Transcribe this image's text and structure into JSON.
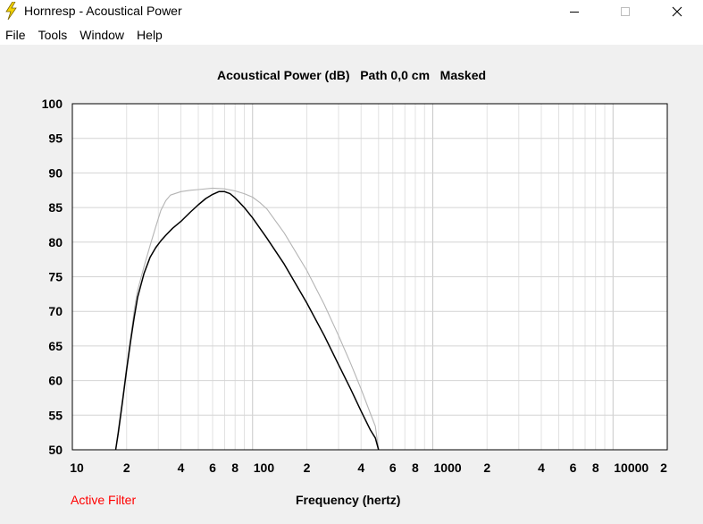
{
  "window": {
    "title": "Hornresp - Acoustical Power",
    "icon": "lightning-bolt-icon",
    "controls": [
      "minimize-icon",
      "maximize-icon",
      "close-icon"
    ]
  },
  "menu": {
    "items": [
      "File",
      "Tools",
      "Window",
      "Help"
    ]
  },
  "status": {
    "filter": "Active Filter",
    "filter_color": "#ff0000"
  },
  "chart_data": {
    "type": "line",
    "title": "Acoustical Power (dB)   Path 0,0 cm   Masked",
    "xlabel": "Frequency (hertz)",
    "ylabel": "",
    "x_scale": "log",
    "xlim": [
      10,
      20000
    ],
    "ylim": [
      50,
      100
    ],
    "grid": true,
    "y_ticks": [
      "100",
      "95",
      "90",
      "85",
      "80",
      "75",
      "70",
      "65",
      "60",
      "55",
      "50"
    ],
    "x_tick_labels": [
      {
        "value": 10,
        "label": "10"
      },
      {
        "value": 20,
        "label": "2"
      },
      {
        "value": 40,
        "label": "4"
      },
      {
        "value": 60,
        "label": "6"
      },
      {
        "value": 80,
        "label": "8"
      },
      {
        "value": 100,
        "label": "100"
      },
      {
        "value": 200,
        "label": "2"
      },
      {
        "value": 400,
        "label": "4"
      },
      {
        "value": 600,
        "label": "6"
      },
      {
        "value": 800,
        "label": "8"
      },
      {
        "value": 1000,
        "label": "1000"
      },
      {
        "value": 2000,
        "label": "2"
      },
      {
        "value": 4000,
        "label": "4"
      },
      {
        "value": 6000,
        "label": "6"
      },
      {
        "value": 8000,
        "label": "8"
      },
      {
        "value": 10000,
        "label": "10000"
      },
      {
        "value": 20000,
        "label": "2"
      }
    ],
    "series": [
      {
        "color": "#000000",
        "x": [
          17.4,
          18,
          19,
          20,
          21,
          22,
          23,
          25,
          27,
          29,
          31,
          33,
          36,
          40,
          45,
          50,
          55,
          60,
          65,
          70,
          75,
          80,
          90,
          100,
          120,
          150,
          200,
          250,
          300,
          350,
          400,
          450,
          480,
          500
        ],
        "y": [
          50,
          52.5,
          57,
          61.5,
          65.5,
          69,
          72,
          75.5,
          77.8,
          79.2,
          80.2,
          81,
          82,
          83,
          84.3,
          85.4,
          86.3,
          86.9,
          87.3,
          87.3,
          87.0,
          86.4,
          85.0,
          83.5,
          80.6,
          76.8,
          71.2,
          66.5,
          62.3,
          58.8,
          55.6,
          52.9,
          51.7,
          50
        ]
      },
      {
        "color": "#b4b4b4",
        "x": [
          17.4,
          18,
          19,
          20,
          21,
          22,
          23,
          25,
          27,
          29,
          31,
          33,
          35,
          40,
          45,
          50,
          60,
          70,
          80,
          90,
          100,
          110,
          120,
          150,
          200,
          250,
          300,
          350,
          400,
          450,
          480,
          500
        ],
        "y": [
          50,
          53,
          57.5,
          62,
          66,
          70,
          73,
          76.5,
          79.5,
          82.2,
          84.6,
          86.0,
          86.8,
          87.3,
          87.5,
          87.6,
          87.8,
          87.7,
          87.4,
          87.0,
          86.5,
          85.7,
          84.8,
          81.3,
          75.9,
          71.0,
          66.5,
          62.5,
          58.8,
          55.3,
          53.4,
          50
        ]
      }
    ]
  }
}
